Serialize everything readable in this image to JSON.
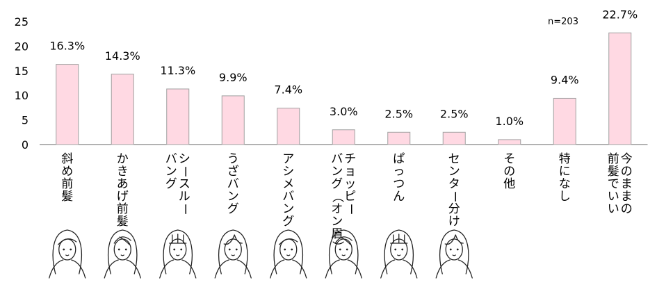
{
  "chart_data": {
    "type": "bar",
    "categories": [
      [
        "斜め前髪"
      ],
      [
        "かきあげ前髪"
      ],
      [
        "シースルー",
        "バング"
      ],
      [
        "うざバング"
      ],
      [
        "アシメバング"
      ],
      [
        "チョッピー",
        "バング（オン眉）"
      ],
      [
        "ぱっつん"
      ],
      [
        "センター分け"
      ],
      [
        "その他"
      ],
      [
        "特になし"
      ],
      [
        "今のままの",
        "前髪でいい"
      ]
    ],
    "values": [
      16.3,
      14.3,
      11.3,
      9.9,
      7.4,
      3.0,
      2.5,
      2.5,
      1.0,
      9.4,
      22.7
    ],
    "data_labels": [
      "16.3%",
      "14.3%",
      "11.3%",
      "9.9%",
      "7.4%",
      "3.0%",
      "2.5%",
      "2.5%",
      "1.0%",
      "9.4%",
      "22.7%"
    ],
    "yticks": [
      0,
      5,
      10,
      15,
      20,
      25
    ],
    "ylim": [
      0,
      25
    ],
    "annotation": "n=203",
    "bar_color": "#ffd9e3",
    "bar_edge_color": "#a0a0a0",
    "illustrated_categories": 8
  }
}
